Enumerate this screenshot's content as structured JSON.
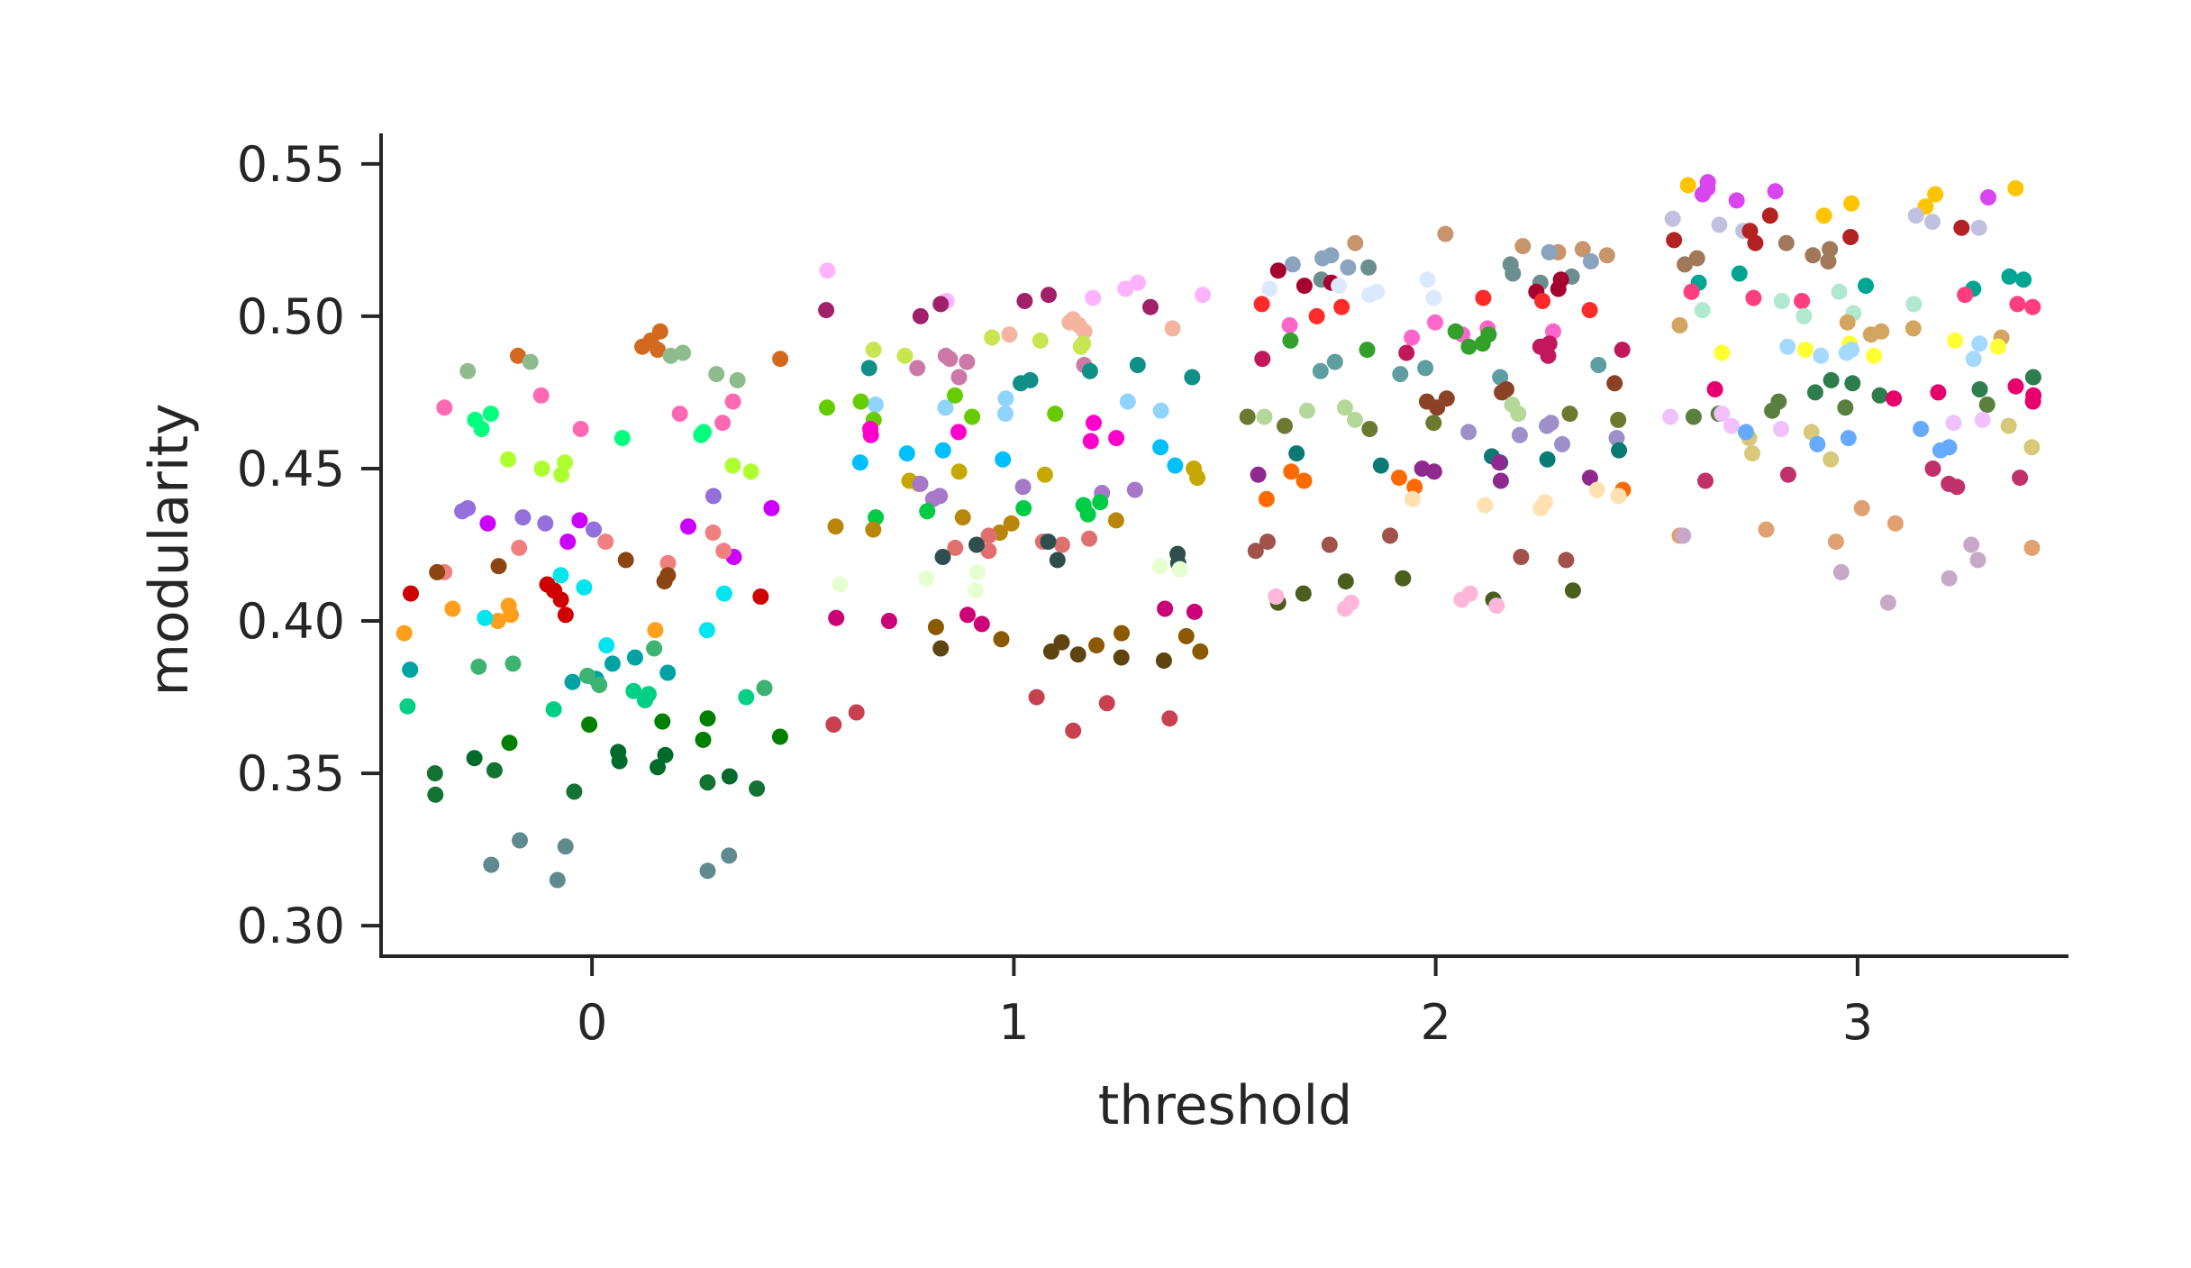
{
  "chart_data": {
    "type": "scatter",
    "title": "",
    "xlabel": "threshold",
    "ylabel": "modularity",
    "xlim": [
      -0.5,
      3.5
    ],
    "ylim": [
      0.29,
      0.56
    ],
    "x_ticks": [
      0,
      1,
      2,
      3
    ],
    "x_tick_labels": [
      "0",
      "1",
      "2",
      "3"
    ],
    "y_ticks": [
      0.3,
      0.35,
      0.4,
      0.45,
      0.5,
      0.55
    ],
    "y_tick_labels": [
      "0.30",
      "0.35",
      "0.40",
      "0.45",
      "0.50",
      "0.55"
    ],
    "grid": false,
    "legend": "none",
    "jitter_width": 0.45,
    "palette": [
      "#ff7f0e",
      "#2ca02c",
      "#d62728",
      "#9467bd",
      "#8c564b",
      "#e377c2",
      "#17becf",
      "#bcbd22",
      "#00ff7f",
      "#ff00ff",
      "#1f77b4",
      "#ffd700",
      "#ff4500",
      "#00ced1",
      "#8b0000",
      "#006400",
      "#b8860b",
      "#9932cc",
      "#20b2aa",
      "#ff1493",
      "#808000",
      "#4682b4",
      "#d2691e",
      "#66cdaa",
      "#c71585",
      "#f4a460",
      "#2e8b57",
      "#da70d6",
      "#a0522d",
      "#87cefa",
      "#ffb6c1",
      "#556b2f",
      "#7b68ee",
      "#00fa9a",
      "#cd5c5c",
      "#bdb76b",
      "#5f9ea0",
      "#dda0dd",
      "#ff6347",
      "#9acd32"
    ],
    "groups": [
      {
        "x": 0,
        "clusters": [
          {
            "color": "#d2691e",
            "values": [
              0.492,
              0.487,
              0.49,
              0.486,
              0.495,
              0.489
            ]
          },
          {
            "color": "#8fbc8f",
            "values": [
              0.482,
              0.479,
              0.487,
              0.481,
              0.488,
              0.485
            ]
          },
          {
            "color": "#00ff7f",
            "values": [
              0.462,
              0.466,
              0.46,
              0.468,
              0.463,
              0.461
            ]
          },
          {
            "color": "#ff69b4",
            "values": [
              0.472,
              0.465,
              0.47,
              0.463,
              0.468,
              0.474
            ]
          },
          {
            "color": "#adff2f",
            "values": [
              0.453,
              0.45,
              0.449,
              0.451,
              0.448,
              0.452
            ]
          },
          {
            "color": "#9370db",
            "values": [
              0.441,
              0.437,
              0.436,
              0.434,
              0.432,
              0.43
            ]
          },
          {
            "color": "#cc00ff",
            "values": [
              0.437,
              0.433,
              0.431,
              0.432,
              0.426,
              0.421
            ]
          },
          {
            "color": "#f08080",
            "values": [
              0.429,
              0.424,
              0.426,
              0.423,
              0.419,
              0.416
            ]
          },
          {
            "color": "#8b4513",
            "values": [
              0.42,
              0.416,
              0.413,
              0.41,
              0.415,
              0.418
            ]
          },
          {
            "color": "#d00000",
            "values": [
              0.412,
              0.41,
              0.407,
              0.408,
              0.402,
              0.409
            ]
          },
          {
            "color": "#ff9f1c",
            "values": [
              0.4,
              0.404,
              0.397,
              0.396,
              0.402,
              0.405
            ]
          },
          {
            "color": "#00e5ee",
            "values": [
              0.415,
              0.401,
              0.397,
              0.411,
              0.392,
              0.409
            ]
          },
          {
            "color": "#00a3a3",
            "values": [
              0.388,
              0.383,
              0.384,
              0.386,
              0.38,
              0.381
            ]
          },
          {
            "color": "#3cb371",
            "values": [
              0.391,
              0.386,
              0.382,
              0.378,
              0.385,
              0.379
            ]
          },
          {
            "color": "#00d084",
            "values": [
              0.375,
              0.377,
              0.372,
              0.374,
              0.376,
              0.371
            ]
          },
          {
            "color": "#008000",
            "values": [
              0.368,
              0.367,
              0.36,
              0.361,
              0.362,
              0.366
            ]
          },
          {
            "color": "#006b2b",
            "values": [
              0.355,
              0.357,
              0.352,
              0.349,
              0.354,
              0.356
            ]
          },
          {
            "color": "#137333",
            "values": [
              0.35,
              0.345,
              0.343,
              0.351,
              0.344,
              0.347
            ]
          },
          {
            "color": "#5f8b8f",
            "values": [
              0.328,
              0.323,
              0.32,
              0.318,
              0.315,
              0.326
            ]
          }
        ]
      },
      {
        "x": 1,
        "clusters": [
          {
            "color": "#ffb3ff",
            "values": [
              0.515,
              0.505,
              0.506,
              0.511,
              0.509,
              0.507
            ]
          },
          {
            "color": "#a0206b",
            "values": [
              0.507,
              0.503,
              0.504,
              0.502,
              0.5,
              0.505
            ]
          },
          {
            "color": "#f4b4a0",
            "values": [
              0.498,
              0.495,
              0.497,
              0.494,
              0.499,
              0.496
            ]
          },
          {
            "color": "#c8e650",
            "values": [
              0.491,
              0.489,
              0.492,
              0.487,
              0.49,
              0.493
            ]
          },
          {
            "color": "#cc79a7",
            "values": [
              0.487,
              0.484,
              0.48,
              0.485,
              0.483,
              0.486
            ]
          },
          {
            "color": "#0f8f85",
            "values": [
              0.483,
              0.479,
              0.48,
              0.482,
              0.478,
              0.484
            ]
          },
          {
            "color": "#8fd3ff",
            "values": [
              0.472,
              0.47,
              0.468,
              0.473,
              0.471,
              0.469
            ]
          },
          {
            "color": "#66cc00",
            "values": [
              0.474,
              0.47,
              0.468,
              0.467,
              0.472,
              0.466
            ]
          },
          {
            "color": "#ff00cc",
            "values": [
              0.463,
              0.461,
              0.46,
              0.465,
              0.459,
              0.462
            ]
          },
          {
            "color": "#00bfff",
            "values": [
              0.455,
              0.453,
              0.451,
              0.456,
              0.452,
              0.457
            ]
          },
          {
            "color": "#c7a800",
            "values": [
              0.449,
              0.447,
              0.446,
              0.445,
              0.448,
              0.45
            ]
          },
          {
            "color": "#a678c8",
            "values": [
              0.445,
              0.442,
              0.441,
              0.443,
              0.44,
              0.444
            ]
          },
          {
            "color": "#00cc44",
            "values": [
              0.439,
              0.437,
              0.435,
              0.438,
              0.436,
              0.434
            ]
          },
          {
            "color": "#b8860b",
            "values": [
              0.433,
              0.431,
              0.43,
              0.432,
              0.429,
              0.434
            ]
          },
          {
            "color": "#e07070",
            "values": [
              0.427,
              0.425,
              0.426,
              0.424,
              0.428,
              0.423
            ]
          },
          {
            "color": "#2f4f4f",
            "values": [
              0.426,
              0.421,
              0.419,
              0.422,
              0.42,
              0.425
            ]
          },
          {
            "color": "#e6ffd0",
            "values": [
              0.418,
              0.414,
              0.412,
              0.416,
              0.41,
              0.417
            ]
          },
          {
            "color": "#cc0077",
            "values": [
              0.403,
              0.401,
              0.399,
              0.402,
              0.4,
              0.404
            ]
          },
          {
            "color": "#8b5a00",
            "values": [
              0.398,
              0.395,
              0.392,
              0.39,
              0.396,
              0.394
            ]
          },
          {
            "color": "#5e4410",
            "values": [
              0.389,
              0.387,
              0.391,
              0.388,
              0.39,
              0.393
            ]
          },
          {
            "color": "#c94050",
            "values": [
              0.375,
              0.37,
              0.368,
              0.373,
              0.366,
              0.364
            ]
          }
        ]
      },
      {
        "x": 2,
        "clusters": [
          {
            "color": "#c8956b",
            "values": [
              0.524,
              0.521,
              0.523,
              0.52,
              0.527,
              0.522
            ]
          },
          {
            "color": "#8aa3bf",
            "values": [
              0.519,
              0.517,
              0.52,
              0.518,
              0.521,
              0.516
            ]
          },
          {
            "color": "#6b8e8e",
            "values": [
              0.516,
              0.513,
              0.511,
              0.517,
              0.514,
              0.512
            ]
          },
          {
            "color": "#a60030",
            "values": [
              0.512,
              0.509,
              0.508,
              0.511,
              0.51,
              0.515
            ]
          },
          {
            "color": "#dbe9ff",
            "values": [
              0.51,
              0.508,
              0.512,
              0.506,
              0.509,
              0.507
            ]
          },
          {
            "color": "#ff2a2a",
            "values": [
              0.506,
              0.502,
              0.5,
              0.504,
              0.503,
              0.505
            ]
          },
          {
            "color": "#ff66cc",
            "values": [
              0.498,
              0.496,
              0.494,
              0.497,
              0.495,
              0.493
            ]
          },
          {
            "color": "#33a02c",
            "values": [
              0.494,
              0.491,
              0.489,
              0.492,
              0.49,
              0.495
            ]
          },
          {
            "color": "#c2185b",
            "values": [
              0.49,
              0.488,
              0.486,
              0.489,
              0.487,
              0.491
            ]
          },
          {
            "color": "#5f9ea0",
            "values": [
              0.485,
              0.482,
              0.48,
              0.484,
              0.481,
              0.483
            ]
          },
          {
            "color": "#8b4226",
            "values": [
              0.478,
              0.475,
              0.472,
              0.476,
              0.473,
              0.47
            ]
          },
          {
            "color": "#b4d89a",
            "values": [
              0.471,
              0.468,
              0.466,
              0.47,
              0.467,
              0.469
            ]
          },
          {
            "color": "#6b7a2f",
            "values": [
              0.468,
              0.465,
              0.463,
              0.467,
              0.464,
              0.466
            ]
          },
          {
            "color": "#9f8fc8",
            "values": [
              0.465,
              0.462,
              0.46,
              0.464,
              0.461,
              0.458
            ]
          },
          {
            "color": "#0b7a75",
            "values": [
              0.456,
              0.454,
              0.452,
              0.455,
              0.453,
              0.451
            ]
          },
          {
            "color": "#8e2a8e",
            "values": [
              0.452,
              0.449,
              0.447,
              0.45,
              0.448,
              0.446
            ]
          },
          {
            "color": "#ff6a00",
            "values": [
              0.449,
              0.446,
              0.443,
              0.447,
              0.444,
              0.44
            ]
          },
          {
            "color": "#ffe0b0",
            "values": [
              0.443,
              0.44,
              0.438,
              0.441,
              0.439,
              0.437
            ]
          },
          {
            "color": "#a0524b",
            "values": [
              0.428,
              0.425,
              0.421,
              0.426,
              0.423,
              0.42
            ]
          },
          {
            "color": "#4b5e1e",
            "values": [
              0.414,
              0.41,
              0.407,
              0.413,
              0.409,
              0.406
            ]
          },
          {
            "color": "#ffb6d9",
            "values": [
              0.409,
              0.407,
              0.405,
              0.408,
              0.406,
              0.404
            ]
          }
        ]
      },
      {
        "x": 3,
        "clusters": [
          {
            "color": "#d946ef",
            "values": [
              0.54,
              0.538,
              0.544,
              0.541,
              0.539,
              0.542
            ]
          },
          {
            "color": "#ffc400",
            "values": [
              0.537,
              0.542,
              0.543,
              0.54,
              0.536,
              0.533
            ]
          },
          {
            "color": "#c0c0e0",
            "values": [
              0.532,
              0.53,
              0.528,
              0.531,
              0.529,
              0.533
            ]
          },
          {
            "color": "#b22222",
            "values": [
              0.528,
              0.526,
              0.524,
              0.529,
              0.525,
              0.533
            ]
          },
          {
            "color": "#a0785a",
            "values": [
              0.524,
              0.52,
              0.518,
              0.522,
              0.519,
              0.517
            ]
          },
          {
            "color": "#00a693",
            "values": [
              0.513,
              0.511,
              0.51,
              0.512,
              0.509,
              0.514
            ]
          },
          {
            "color": "#ff3d7f",
            "values": [
              0.508,
              0.506,
              0.504,
              0.507,
              0.505,
              0.503
            ]
          },
          {
            "color": "#b0e8d0",
            "values": [
              0.505,
              0.502,
              0.5,
              0.504,
              0.501,
              0.508
            ]
          },
          {
            "color": "#d4a560",
            "values": [
              0.498,
              0.496,
              0.494,
              0.497,
              0.495,
              0.493
            ]
          },
          {
            "color": "#ffff33",
            "values": [
              0.492,
              0.49,
              0.489,
              0.491,
              0.488,
              0.487
            ]
          },
          {
            "color": "#a3d9ff",
            "values": [
              0.49,
              0.488,
              0.486,
              0.489,
              0.487,
              0.491
            ]
          },
          {
            "color": "#2e7d4f",
            "values": [
              0.48,
              0.478,
              0.475,
              0.479,
              0.476,
              0.474
            ]
          },
          {
            "color": "#e6006b",
            "values": [
              0.477,
              0.474,
              0.472,
              0.476,
              0.473,
              0.475
            ]
          },
          {
            "color": "#5b7f3f",
            "values": [
              0.472,
              0.47,
              0.468,
              0.471,
              0.469,
              0.467
            ]
          },
          {
            "color": "#f0c0ff",
            "values": [
              0.468,
              0.466,
              0.464,
              0.467,
              0.465,
              0.463
            ]
          },
          {
            "color": "#d8c87a",
            "values": [
              0.464,
              0.46,
              0.457,
              0.462,
              0.455,
              0.453
            ]
          },
          {
            "color": "#66aaff",
            "values": [
              0.462,
              0.458,
              0.456,
              0.46,
              0.457,
              0.463
            ]
          },
          {
            "color": "#c0306a",
            "values": [
              0.45,
              0.447,
              0.444,
              0.448,
              0.445,
              0.446
            ]
          },
          {
            "color": "#e0a070",
            "values": [
              0.432,
              0.43,
              0.426,
              0.428,
              0.424,
              0.437
            ]
          },
          {
            "color": "#c8a8c8",
            "values": [
              0.425,
              0.42,
              0.416,
              0.414,
              0.406,
              0.428
            ]
          }
        ]
      }
    ]
  }
}
